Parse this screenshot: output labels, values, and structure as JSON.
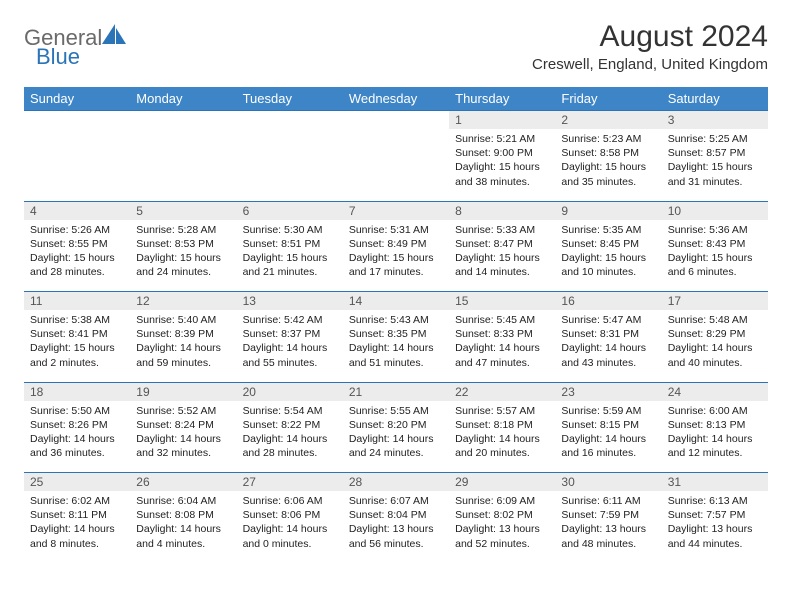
{
  "logo": {
    "general": "General",
    "blue": "Blue"
  },
  "title": "August 2024",
  "location": "Creswell, England, United Kingdom",
  "colors": {
    "header_bg": "#3d85c6",
    "header_text": "#ffffff",
    "row_border": "#2b74b8",
    "daynum_bg": "#ececec",
    "logo_gray": "#6a6a6a",
    "logo_blue": "#2b74b8"
  },
  "day_headers": [
    "Sunday",
    "Monday",
    "Tuesday",
    "Wednesday",
    "Thursday",
    "Friday",
    "Saturday"
  ],
  "weeks": [
    [
      {
        "empty": true
      },
      {
        "empty": true
      },
      {
        "empty": true
      },
      {
        "empty": true
      },
      {
        "day": "1",
        "sunrise": "5:21 AM",
        "sunset": "9:00 PM",
        "daylight": "15 hours and 38 minutes."
      },
      {
        "day": "2",
        "sunrise": "5:23 AM",
        "sunset": "8:58 PM",
        "daylight": "15 hours and 35 minutes."
      },
      {
        "day": "3",
        "sunrise": "5:25 AM",
        "sunset": "8:57 PM",
        "daylight": "15 hours and 31 minutes."
      }
    ],
    [
      {
        "day": "4",
        "sunrise": "5:26 AM",
        "sunset": "8:55 PM",
        "daylight": "15 hours and 28 minutes."
      },
      {
        "day": "5",
        "sunrise": "5:28 AM",
        "sunset": "8:53 PM",
        "daylight": "15 hours and 24 minutes."
      },
      {
        "day": "6",
        "sunrise": "5:30 AM",
        "sunset": "8:51 PM",
        "daylight": "15 hours and 21 minutes."
      },
      {
        "day": "7",
        "sunrise": "5:31 AM",
        "sunset": "8:49 PM",
        "daylight": "15 hours and 17 minutes."
      },
      {
        "day": "8",
        "sunrise": "5:33 AM",
        "sunset": "8:47 PM",
        "daylight": "15 hours and 14 minutes."
      },
      {
        "day": "9",
        "sunrise": "5:35 AM",
        "sunset": "8:45 PM",
        "daylight": "15 hours and 10 minutes."
      },
      {
        "day": "10",
        "sunrise": "5:36 AM",
        "sunset": "8:43 PM",
        "daylight": "15 hours and 6 minutes."
      }
    ],
    [
      {
        "day": "11",
        "sunrise": "5:38 AM",
        "sunset": "8:41 PM",
        "daylight": "15 hours and 2 minutes."
      },
      {
        "day": "12",
        "sunrise": "5:40 AM",
        "sunset": "8:39 PM",
        "daylight": "14 hours and 59 minutes."
      },
      {
        "day": "13",
        "sunrise": "5:42 AM",
        "sunset": "8:37 PM",
        "daylight": "14 hours and 55 minutes."
      },
      {
        "day": "14",
        "sunrise": "5:43 AM",
        "sunset": "8:35 PM",
        "daylight": "14 hours and 51 minutes."
      },
      {
        "day": "15",
        "sunrise": "5:45 AM",
        "sunset": "8:33 PM",
        "daylight": "14 hours and 47 minutes."
      },
      {
        "day": "16",
        "sunrise": "5:47 AM",
        "sunset": "8:31 PM",
        "daylight": "14 hours and 43 minutes."
      },
      {
        "day": "17",
        "sunrise": "5:48 AM",
        "sunset": "8:29 PM",
        "daylight": "14 hours and 40 minutes."
      }
    ],
    [
      {
        "day": "18",
        "sunrise": "5:50 AM",
        "sunset": "8:26 PM",
        "daylight": "14 hours and 36 minutes."
      },
      {
        "day": "19",
        "sunrise": "5:52 AM",
        "sunset": "8:24 PM",
        "daylight": "14 hours and 32 minutes."
      },
      {
        "day": "20",
        "sunrise": "5:54 AM",
        "sunset": "8:22 PM",
        "daylight": "14 hours and 28 minutes."
      },
      {
        "day": "21",
        "sunrise": "5:55 AM",
        "sunset": "8:20 PM",
        "daylight": "14 hours and 24 minutes."
      },
      {
        "day": "22",
        "sunrise": "5:57 AM",
        "sunset": "8:18 PM",
        "daylight": "14 hours and 20 minutes."
      },
      {
        "day": "23",
        "sunrise": "5:59 AM",
        "sunset": "8:15 PM",
        "daylight": "14 hours and 16 minutes."
      },
      {
        "day": "24",
        "sunrise": "6:00 AM",
        "sunset": "8:13 PM",
        "daylight": "14 hours and 12 minutes."
      }
    ],
    [
      {
        "day": "25",
        "sunrise": "6:02 AM",
        "sunset": "8:11 PM",
        "daylight": "14 hours and 8 minutes."
      },
      {
        "day": "26",
        "sunrise": "6:04 AM",
        "sunset": "8:08 PM",
        "daylight": "14 hours and 4 minutes."
      },
      {
        "day": "27",
        "sunrise": "6:06 AM",
        "sunset": "8:06 PM",
        "daylight": "14 hours and 0 minutes."
      },
      {
        "day": "28",
        "sunrise": "6:07 AM",
        "sunset": "8:04 PM",
        "daylight": "13 hours and 56 minutes."
      },
      {
        "day": "29",
        "sunrise": "6:09 AM",
        "sunset": "8:02 PM",
        "daylight": "13 hours and 52 minutes."
      },
      {
        "day": "30",
        "sunrise": "6:11 AM",
        "sunset": "7:59 PM",
        "daylight": "13 hours and 48 minutes."
      },
      {
        "day": "31",
        "sunrise": "6:13 AM",
        "sunset": "7:57 PM",
        "daylight": "13 hours and 44 minutes."
      }
    ]
  ],
  "labels": {
    "sunrise": "Sunrise:",
    "sunset": "Sunset:",
    "daylight": "Daylight:"
  }
}
